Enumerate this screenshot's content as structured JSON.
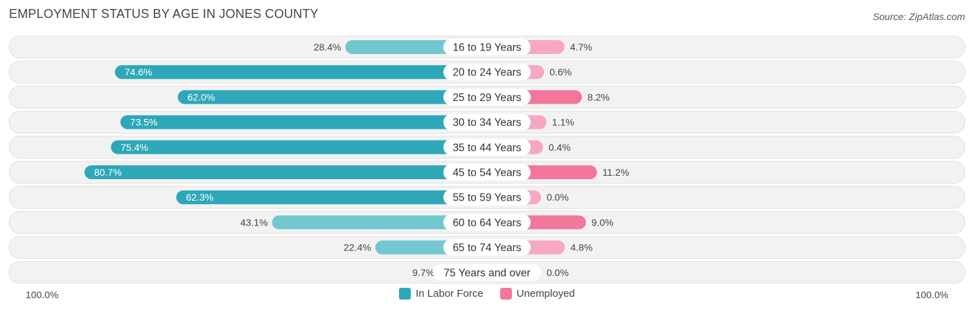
{
  "header": {
    "title": "EMPLOYMENT STATUS BY AGE IN JONES COUNTY",
    "source": "Source: ZipAtlas.com"
  },
  "axis": {
    "left_label": "100.0%",
    "right_label": "100.0%"
  },
  "legend": {
    "labor_label": "In Labor Force",
    "unemployed_label": "Unemployed"
  },
  "colors": {
    "labor_strong": "#2ea7b8",
    "labor_light": "#72c7d1",
    "unemployed_strong": "#f2779b",
    "unemployed_light": "#f6a8c0",
    "row_bg": "#f2f2f2",
    "row_border": "#e0e0e0"
  },
  "chart_data": {
    "type": "bar",
    "orientation": "horizontal-diverging",
    "title": "EMPLOYMENT STATUS BY AGE IN JONES COUNTY",
    "xlim": [
      -100,
      100
    ],
    "categories": [
      "16 to 19 Years",
      "20 to 24 Years",
      "25 to 29 Years",
      "30 to 34 Years",
      "35 to 44 Years",
      "45 to 54 Years",
      "55 to 59 Years",
      "60 to 64 Years",
      "65 to 74 Years",
      "75 Years and over"
    ],
    "series": [
      {
        "name": "In Labor Force",
        "values": [
          28.4,
          74.6,
          62.0,
          73.5,
          75.4,
          80.7,
          62.3,
          43.1,
          22.4,
          9.7
        ],
        "labels": [
          "28.4%",
          "74.6%",
          "62.0%",
          "73.5%",
          "75.4%",
          "80.7%",
          "62.3%",
          "43.1%",
          "22.4%",
          "9.7%"
        ]
      },
      {
        "name": "Unemployed",
        "values": [
          4.7,
          0.6,
          8.2,
          1.1,
          0.4,
          11.2,
          0.0,
          9.0,
          4.8,
          0.0
        ],
        "labels": [
          "4.7%",
          "0.6%",
          "8.2%",
          "1.1%",
          "0.4%",
          "11.2%",
          "0.0%",
          "9.0%",
          "4.8%",
          "0.0%"
        ]
      }
    ],
    "legend": [
      "In Labor Force",
      "Unemployed"
    ]
  }
}
